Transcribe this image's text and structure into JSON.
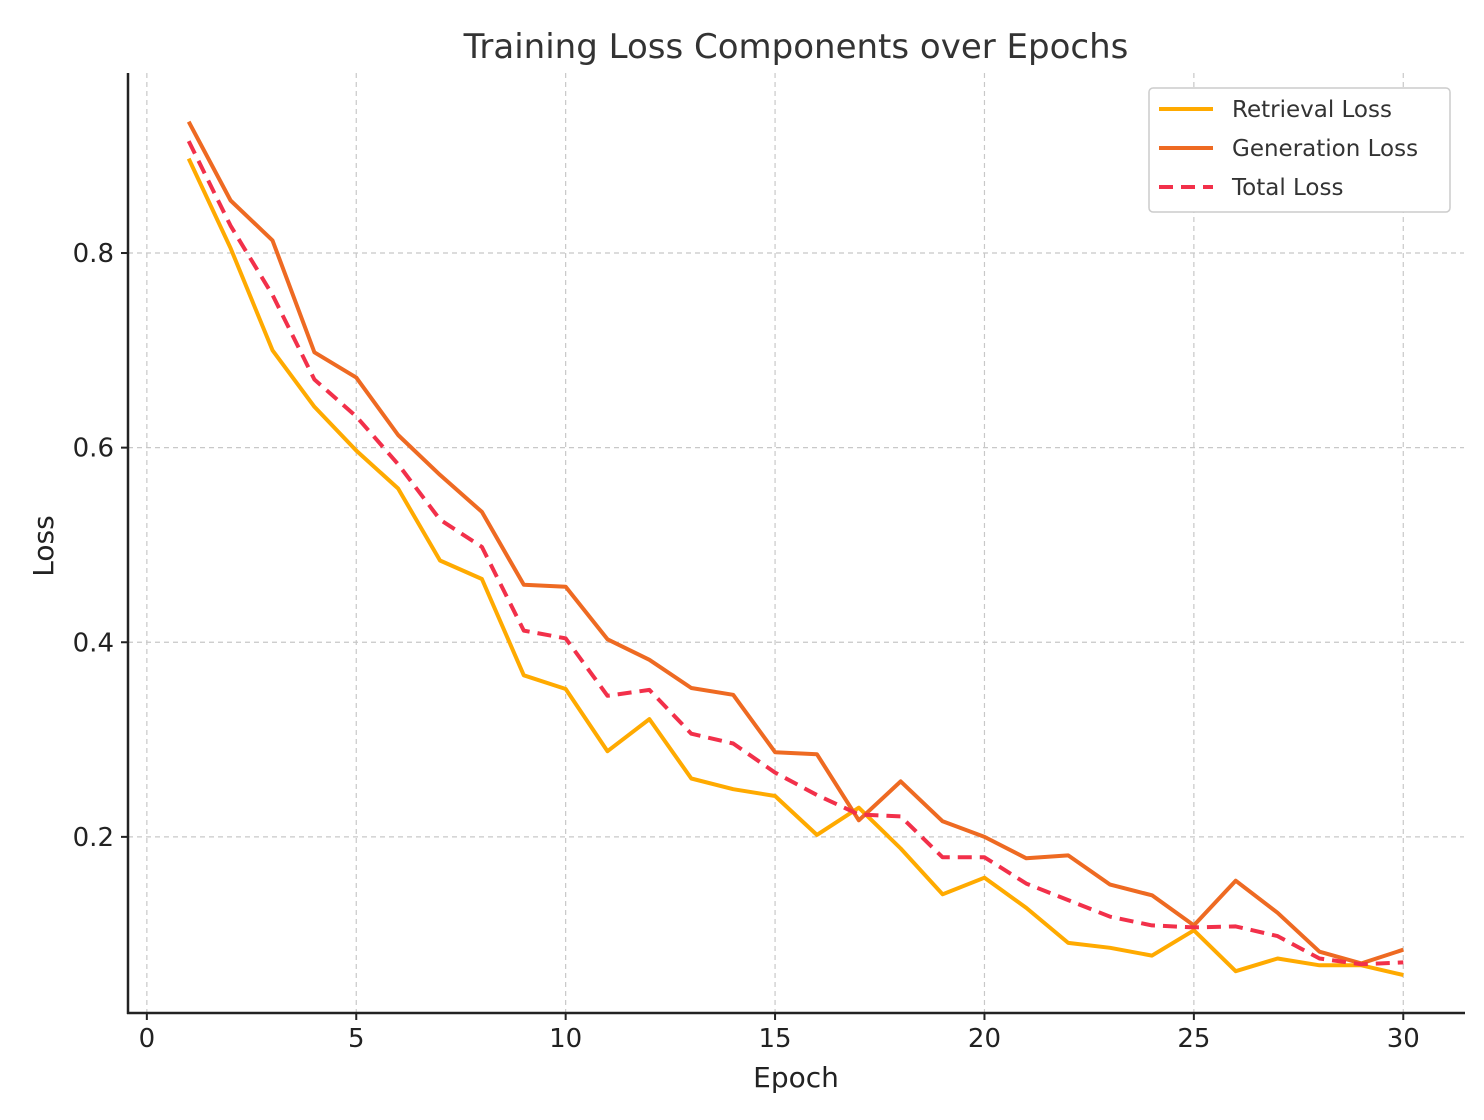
{
  "chart_data": {
    "type": "line",
    "title": "Training Loss Components over Epochs",
    "xlabel": "Epoch",
    "ylabel": "Loss",
    "xlim": [
      -0.45,
      31.45
    ],
    "ylim": [
      0.019,
      0.985
    ],
    "xticks": [
      0,
      5,
      10,
      15,
      20,
      25,
      30
    ],
    "yticks": [
      0.2,
      0.4,
      0.6,
      0.8
    ],
    "xtick_labels": [
      "0",
      "5",
      "10",
      "15",
      "20",
      "25",
      "30"
    ],
    "ytick_labels": [
      "0.2",
      "0.4",
      "0.6",
      "0.8"
    ],
    "grid": true,
    "legend_position": "top-right",
    "x": [
      1,
      2,
      3,
      4,
      5,
      6,
      7,
      8,
      9,
      10,
      11,
      12,
      13,
      14,
      15,
      16,
      17,
      18,
      19,
      20,
      21,
      22,
      23,
      24,
      25,
      26,
      27,
      28,
      29,
      30
    ],
    "series": [
      {
        "name": "Retrieval Loss",
        "color": "#ffaa00",
        "style": "solid",
        "values": [
          0.897,
          0.805,
          0.7,
          0.642,
          0.597,
          0.558,
          0.484,
          0.465,
          0.366,
          0.352,
          0.288,
          0.321,
          0.26,
          0.249,
          0.242,
          0.202,
          0.23,
          0.188,
          0.141,
          0.158,
          0.127,
          0.091,
          0.086,
          0.078,
          0.104,
          0.062,
          0.075,
          0.068,
          0.068,
          0.058
        ]
      },
      {
        "name": "Generation Loss",
        "color": "#ee6a22",
        "style": "solid",
        "values": [
          0.935,
          0.854,
          0.813,
          0.698,
          0.672,
          0.613,
          0.572,
          0.534,
          0.459,
          0.457,
          0.403,
          0.382,
          0.353,
          0.346,
          0.287,
          0.285,
          0.217,
          0.257,
          0.216,
          0.2,
          0.178,
          0.181,
          0.151,
          0.14,
          0.109,
          0.155,
          0.122,
          0.082,
          0.07,
          0.084
        ]
      },
      {
        "name": "Total Loss",
        "color": "#f2304a",
        "style": "dashed",
        "values": [
          0.915,
          0.828,
          0.757,
          0.67,
          0.632,
          0.583,
          0.526,
          0.498,
          0.412,
          0.404,
          0.345,
          0.351,
          0.306,
          0.296,
          0.266,
          0.243,
          0.223,
          0.221,
          0.179,
          0.179,
          0.152,
          0.135,
          0.118,
          0.109,
          0.107,
          0.108,
          0.098,
          0.075,
          0.069,
          0.071
        ]
      }
    ]
  }
}
